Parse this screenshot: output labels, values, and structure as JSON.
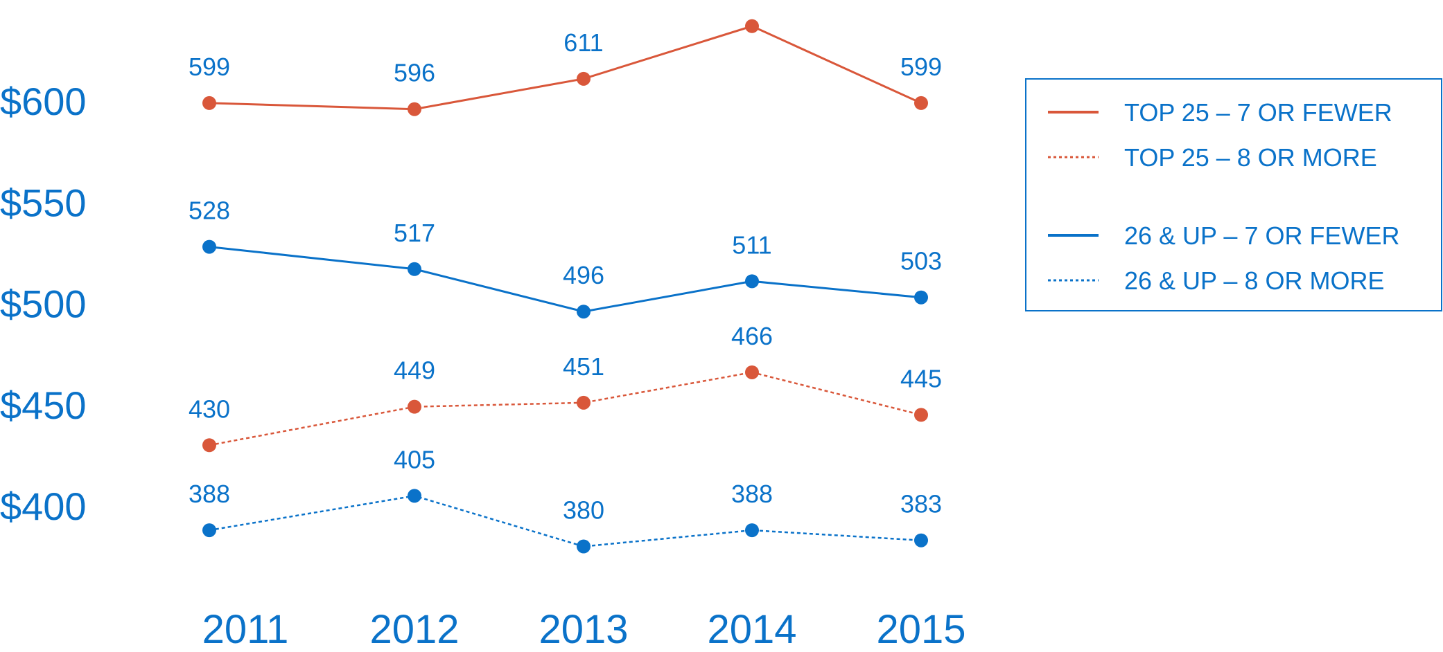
{
  "chart_data": {
    "type": "line",
    "title": "",
    "xlabel": "",
    "ylabel": "",
    "categories": [
      "2011",
      "2012",
      "2013",
      "2014",
      "2015"
    ],
    "ylim": [
      380,
      640
    ],
    "yticks": [
      400,
      450,
      500,
      550,
      600
    ],
    "ytick_labels": [
      "$400",
      "$450",
      "$500",
      "$550",
      "$600"
    ],
    "grid": false,
    "legend_position": "right",
    "series": [
      {
        "name": "TOP 25 – 7 OR FEWER",
        "values": [
          599,
          596,
          611,
          637,
          599
        ],
        "color": "#d9573a",
        "style": "solid"
      },
      {
        "name": "TOP 25 – 8 OR MORE",
        "values": [
          430,
          449,
          451,
          466,
          445
        ],
        "color": "#d9573a",
        "style": "dotted"
      },
      {
        "name": "26 & UP – 7 OR FEWER",
        "values": [
          528,
          517,
          496,
          511,
          503
        ],
        "color": "#0a72c9",
        "style": "solid"
      },
      {
        "name": "26 & UP – 8 OR MORE",
        "values": [
          388,
          405,
          380,
          388,
          383
        ],
        "color": "#0a72c9",
        "style": "dotted"
      }
    ],
    "label_color": "#0a72c9"
  }
}
